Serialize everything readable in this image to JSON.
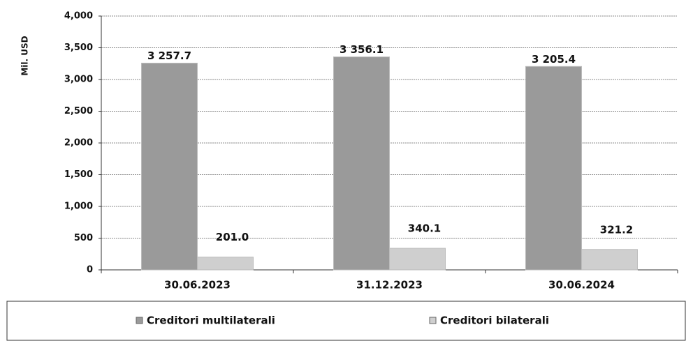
{
  "chart_data": {
    "type": "bar",
    "y_label": "Mil. USD",
    "categories": [
      "30.06.2023",
      "31.12.2023",
      "30.06.2024"
    ],
    "series": [
      {
        "name": "Creditori multilaterali",
        "color": "#9a9a9a",
        "values": [
          3257.7,
          3356.1,
          3205.4
        ],
        "value_labels": [
          "3 257.7",
          "3 356.1",
          "3 205.4"
        ]
      },
      {
        "name": "Creditori bilaterali",
        "color": "#cfcfcf",
        "values": [
          201.0,
          340.1,
          321.2
        ],
        "value_labels": [
          "201.0",
          "340.1",
          "321.2"
        ]
      }
    ],
    "ylim": [
      0,
      4000
    ],
    "yticks": [
      0,
      500,
      {
        "value": 1000,
        "label": "1,000"
      },
      {
        "value": 1500,
        "label": "1,500"
      },
      {
        "value": 2000,
        "label": "2,000"
      },
      {
        "value": 2500,
        "label": "2,500"
      },
      {
        "value": 3000,
        "label": "3,000"
      },
      {
        "value": 3500,
        "label": "3,500"
      },
      {
        "value": 4000,
        "label": "4,000"
      }
    ],
    "grid": true,
    "legend": "bottom"
  }
}
